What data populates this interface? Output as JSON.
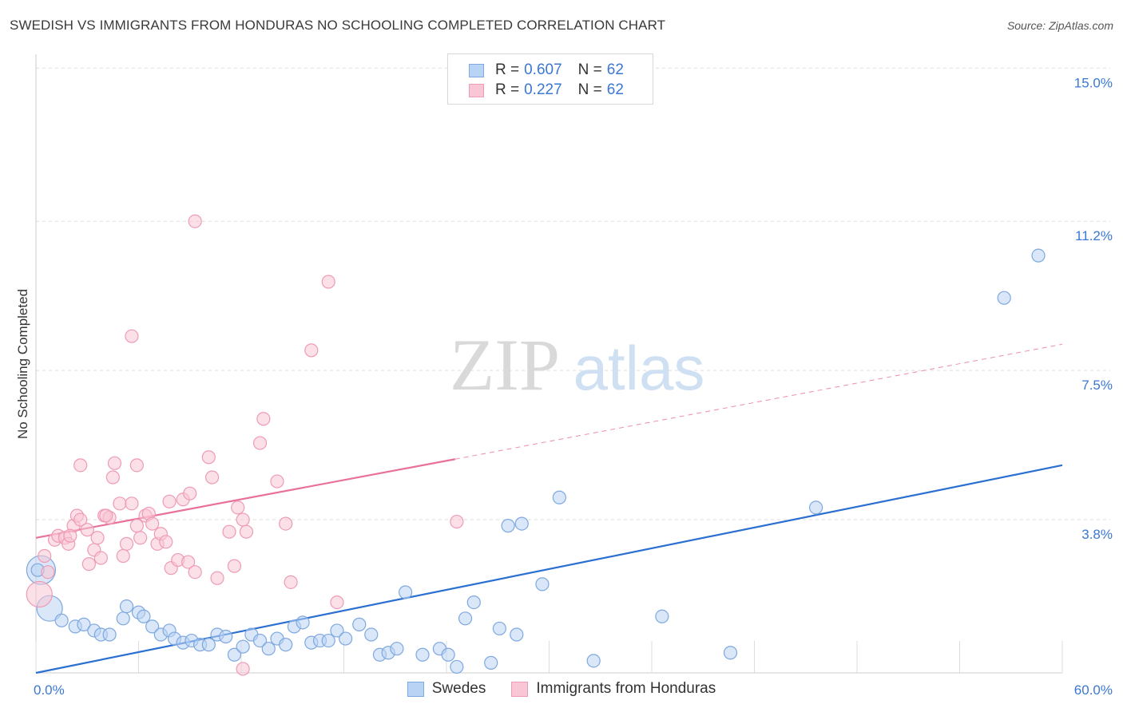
{
  "title": "SWEDISH VS IMMIGRANTS FROM HONDURAS NO SCHOOLING COMPLETED CORRELATION CHART",
  "source": "Source: ZipAtlas.com",
  "watermark": {
    "zip": "ZIP",
    "atlas": "atlas"
  },
  "legend": {
    "rows": [
      {
        "r_label": "R =",
        "r_value": "0.607",
        "n_label": "N =",
        "n_value": "62",
        "fill": "#b9d3f4",
        "stroke": "#7ea8e0"
      },
      {
        "r_label": "R =",
        "r_value": "0.227",
        "n_label": "N =",
        "n_value": "62",
        "fill": "#f9c6d5",
        "stroke": "#ee9bb5"
      }
    ]
  },
  "chart_data": {
    "type": "scatter",
    "title": "SWEDISH VS IMMIGRANTS FROM HONDURAS NO SCHOOLING COMPLETED CORRELATION CHART",
    "ylabel": "No Schooling Completed",
    "xlabel": "",
    "xlim": [
      0,
      60
    ],
    "ylim": [
      0,
      15.5
    ],
    "x_ticks": [
      0,
      6,
      12,
      18,
      24,
      30,
      36,
      42,
      48,
      54,
      60
    ],
    "x_tick_labels_shown": {
      "0": "0.0%",
      "60": "60.0%"
    },
    "y_ticks": [
      {
        "value": 3.8,
        "label": "3.8%"
      },
      {
        "value": 7.5,
        "label": "7.5%"
      },
      {
        "value": 11.2,
        "label": "11.2%"
      },
      {
        "value": 15.0,
        "label": "15.0%"
      }
    ],
    "grid": true,
    "legend_position": "top-center",
    "series": [
      {
        "name": "Swedes",
        "color": "#7ea8e0",
        "fill": "#b9d3f4",
        "line_color": "#2a6fd1",
        "trend": {
          "x": [
            0,
            60
          ],
          "y": [
            0.0,
            5.15
          ]
        },
        "points": [
          {
            "x": 0.3,
            "y": 2.55,
            "s": 18
          },
          {
            "x": 0.8,
            "y": 1.6,
            "s": 16
          },
          {
            "x": 1.5,
            "y": 1.3
          },
          {
            "x": 2.3,
            "y": 1.15
          },
          {
            "x": 2.8,
            "y": 1.2
          },
          {
            "x": 3.4,
            "y": 1.05
          },
          {
            "x": 3.8,
            "y": 0.95
          },
          {
            "x": 4.3,
            "y": 0.95
          },
          {
            "x": 5.1,
            "y": 1.35
          },
          {
            "x": 5.3,
            "y": 1.65
          },
          {
            "x": 6,
            "y": 1.5
          },
          {
            "x": 6.3,
            "y": 1.4
          },
          {
            "x": 6.8,
            "y": 1.15
          },
          {
            "x": 7.3,
            "y": 0.95
          },
          {
            "x": 7.8,
            "y": 1.05
          },
          {
            "x": 8.1,
            "y": 0.85
          },
          {
            "x": 8.6,
            "y": 0.75
          },
          {
            "x": 9.1,
            "y": 0.8
          },
          {
            "x": 9.6,
            "y": 0.7
          },
          {
            "x": 10.1,
            "y": 0.7
          },
          {
            "x": 10.6,
            "y": 0.95
          },
          {
            "x": 11.1,
            "y": 0.9
          },
          {
            "x": 11.6,
            "y": 0.45
          },
          {
            "x": 12.1,
            "y": 0.65
          },
          {
            "x": 12.6,
            "y": 0.95
          },
          {
            "x": 13.1,
            "y": 0.8
          },
          {
            "x": 13.6,
            "y": 0.6
          },
          {
            "x": 14.1,
            "y": 0.85
          },
          {
            "x": 14.6,
            "y": 0.7
          },
          {
            "x": 15.1,
            "y": 1.15
          },
          {
            "x": 15.6,
            "y": 1.25
          },
          {
            "x": 16.1,
            "y": 0.75
          },
          {
            "x": 16.6,
            "y": 0.8
          },
          {
            "x": 17.1,
            "y": 0.8
          },
          {
            "x": 17.6,
            "y": 1.05
          },
          {
            "x": 18.1,
            "y": 0.85
          },
          {
            "x": 18.9,
            "y": 1.2
          },
          {
            "x": 19.6,
            "y": 0.95
          },
          {
            "x": 20.1,
            "y": 0.45
          },
          {
            "x": 20.6,
            "y": 0.5
          },
          {
            "x": 21.1,
            "y": 0.6
          },
          {
            "x": 21.6,
            "y": 2.0
          },
          {
            "x": 22.6,
            "y": 0.45
          },
          {
            "x": 23.6,
            "y": 0.6
          },
          {
            "x": 24.1,
            "y": 0.45
          },
          {
            "x": 24.6,
            "y": 0.15
          },
          {
            "x": 25.1,
            "y": 1.35
          },
          {
            "x": 25.6,
            "y": 1.75
          },
          {
            "x": 26.6,
            "y": 0.25
          },
          {
            "x": 27.1,
            "y": 1.1
          },
          {
            "x": 27.6,
            "y": 3.65
          },
          {
            "x": 28.1,
            "y": 0.95
          },
          {
            "x": 28.4,
            "y": 3.7
          },
          {
            "x": 29.6,
            "y": 2.2
          },
          {
            "x": 30.6,
            "y": 4.35
          },
          {
            "x": 32.6,
            "y": 0.3
          },
          {
            "x": 36.6,
            "y": 1.4
          },
          {
            "x": 40.6,
            "y": 0.5
          },
          {
            "x": 45.6,
            "y": 4.1
          },
          {
            "x": 56.6,
            "y": 9.3
          },
          {
            "x": 58.6,
            "y": 10.35
          },
          {
            "x": 0.1,
            "y": 2.55
          }
        ]
      },
      {
        "name": "Immigrants from Honduras",
        "color": "#ee9bb5",
        "fill": "#f9c6d5",
        "line_color": "#e8709a",
        "trend": {
          "x": [
            0,
            24.5
          ],
          "y": [
            3.35,
            5.3
          ]
        },
        "trend_dashed": {
          "x": [
            24.5,
            60
          ],
          "y": [
            5.3,
            8.15
          ]
        },
        "points": [
          {
            "x": 0.2,
            "y": 1.95,
            "s": 16
          },
          {
            "x": 0.5,
            "y": 2.9
          },
          {
            "x": 0.7,
            "y": 2.5
          },
          {
            "x": 1.1,
            "y": 3.3
          },
          {
            "x": 1.3,
            "y": 3.4
          },
          {
            "x": 1.7,
            "y": 3.35
          },
          {
            "x": 1.9,
            "y": 3.2
          },
          {
            "x": 2.2,
            "y": 3.65
          },
          {
            "x": 2.4,
            "y": 3.9
          },
          {
            "x": 2.6,
            "y": 3.8
          },
          {
            "x": 2.6,
            "y": 5.15
          },
          {
            "x": 3.0,
            "y": 3.55
          },
          {
            "x": 3.1,
            "y": 2.7
          },
          {
            "x": 3.4,
            "y": 3.05
          },
          {
            "x": 3.6,
            "y": 3.35
          },
          {
            "x": 3.8,
            "y": 2.85
          },
          {
            "x": 4.0,
            "y": 3.9
          },
          {
            "x": 4.3,
            "y": 3.85
          },
          {
            "x": 4.5,
            "y": 4.85
          },
          {
            "x": 4.6,
            "y": 5.2
          },
          {
            "x": 4.9,
            "y": 4.2
          },
          {
            "x": 5.1,
            "y": 2.9
          },
          {
            "x": 5.3,
            "y": 3.2
          },
          {
            "x": 5.6,
            "y": 4.2
          },
          {
            "x": 5.6,
            "y": 8.35
          },
          {
            "x": 5.9,
            "y": 5.15
          },
          {
            "x": 5.9,
            "y": 3.65
          },
          {
            "x": 6.1,
            "y": 3.35
          },
          {
            "x": 6.4,
            "y": 3.9
          },
          {
            "x": 6.6,
            "y": 3.95
          },
          {
            "x": 6.8,
            "y": 3.7
          },
          {
            "x": 7.1,
            "y": 3.2
          },
          {
            "x": 7.3,
            "y": 3.45
          },
          {
            "x": 7.6,
            "y": 3.25
          },
          {
            "x": 7.8,
            "y": 4.25
          },
          {
            "x": 7.9,
            "y": 2.6
          },
          {
            "x": 8.3,
            "y": 2.8
          },
          {
            "x": 8.6,
            "y": 4.3
          },
          {
            "x": 8.9,
            "y": 2.75
          },
          {
            "x": 9.0,
            "y": 4.45
          },
          {
            "x": 9.3,
            "y": 2.5
          },
          {
            "x": 9.3,
            "y": 11.2
          },
          {
            "x": 10.1,
            "y": 5.35
          },
          {
            "x": 10.3,
            "y": 4.85
          },
          {
            "x": 10.6,
            "y": 2.35
          },
          {
            "x": 11.3,
            "y": 3.5
          },
          {
            "x": 11.6,
            "y": 2.65
          },
          {
            "x": 11.8,
            "y": 4.1
          },
          {
            "x": 12.1,
            "y": 3.8
          },
          {
            "x": 12.3,
            "y": 3.5
          },
          {
            "x": 12.1,
            "y": 0.1
          },
          {
            "x": 13.1,
            "y": 5.7
          },
          {
            "x": 13.3,
            "y": 6.3
          },
          {
            "x": 14.1,
            "y": 4.75
          },
          {
            "x": 14.6,
            "y": 3.7
          },
          {
            "x": 14.9,
            "y": 2.25
          },
          {
            "x": 16.1,
            "y": 8.0
          },
          {
            "x": 17.1,
            "y": 9.7
          },
          {
            "x": 17.6,
            "y": 1.75
          },
          {
            "x": 24.6,
            "y": 3.75
          },
          {
            "x": 4.1,
            "y": 3.9
          },
          {
            "x": 2.0,
            "y": 3.4
          }
        ]
      }
    ]
  },
  "bottom_legend": [
    "Swedes",
    "Immigrants from Honduras"
  ]
}
